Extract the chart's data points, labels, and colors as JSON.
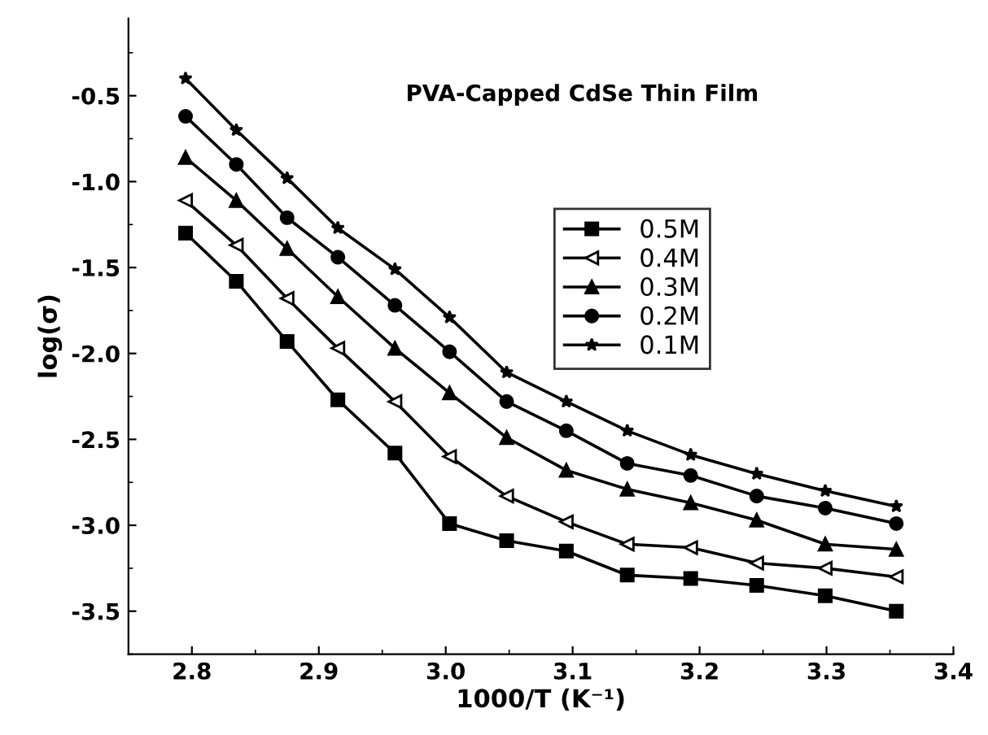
{
  "chart_data": {
    "type": "line",
    "title": "PVA-Capped CdSe Thin Film",
    "xlabel": "1000/T (K⁻¹)",
    "ylabel": "log(σ)",
    "x": [
      2.795,
      2.835,
      2.875,
      2.915,
      2.96,
      3.003,
      3.048,
      3.095,
      3.143,
      3.193,
      3.245,
      3.299,
      3.355
    ],
    "series": [
      {
        "name": "0.5M",
        "color": "#000000",
        "marker": "square",
        "values": [
          -1.3,
          -1.58,
          -1.93,
          -2.27,
          -2.58,
          -2.99,
          -3.09,
          -3.15,
          -3.29,
          -3.31,
          -3.35,
          -3.41,
          -3.5
        ]
      },
      {
        "name": "0.4M",
        "color": "#000000",
        "marker": "triangle_left_open",
        "values": [
          -1.11,
          -1.37,
          -1.68,
          -1.97,
          -2.28,
          -2.6,
          -2.83,
          -2.98,
          -3.11,
          -3.13,
          -3.22,
          -3.25,
          -3.3
        ]
      },
      {
        "name": "0.3M",
        "color": "#000000",
        "marker": "triangle",
        "values": [
          -0.86,
          -1.11,
          -1.39,
          -1.67,
          -1.97,
          -2.23,
          -2.49,
          -2.68,
          -2.79,
          -2.87,
          -2.97,
          -3.11,
          -3.14
        ]
      },
      {
        "name": "0.2M",
        "color": "#000000",
        "marker": "circle",
        "values": [
          -0.62,
          -0.9,
          -1.21,
          -1.44,
          -1.72,
          -1.99,
          -2.28,
          -2.45,
          -2.64,
          -2.71,
          -2.83,
          -2.9,
          -2.99
        ]
      },
      {
        "name": "0.1M",
        "color": "#000000",
        "marker": "star",
        "values": [
          -0.4,
          -0.7,
          -0.98,
          -1.27,
          -1.51,
          -1.79,
          -2.11,
          -2.28,
          -2.45,
          -2.59,
          -2.7,
          -2.8,
          -2.89
        ]
      }
    ],
    "xlim": [
      2.75,
      3.4
    ],
    "xticks": [
      2.8,
      2.9,
      {
        "value": 3.0,
        "label": "3.0"
      },
      3.1,
      3.2,
      3.3,
      3.4
    ],
    "ylim": [
      -3.75,
      -0.05
    ],
    "yticks": [
      -3.5,
      {
        "value": -3.0,
        "label": "-3.0"
      },
      -2.5,
      {
        "value": -2.0,
        "label": "-2.0"
      },
      -1.5,
      {
        "value": -1.0,
        "label": "-1.0"
      },
      -0.5
    ],
    "grid": false,
    "legend": "top right",
    "line_style": "solid"
  }
}
